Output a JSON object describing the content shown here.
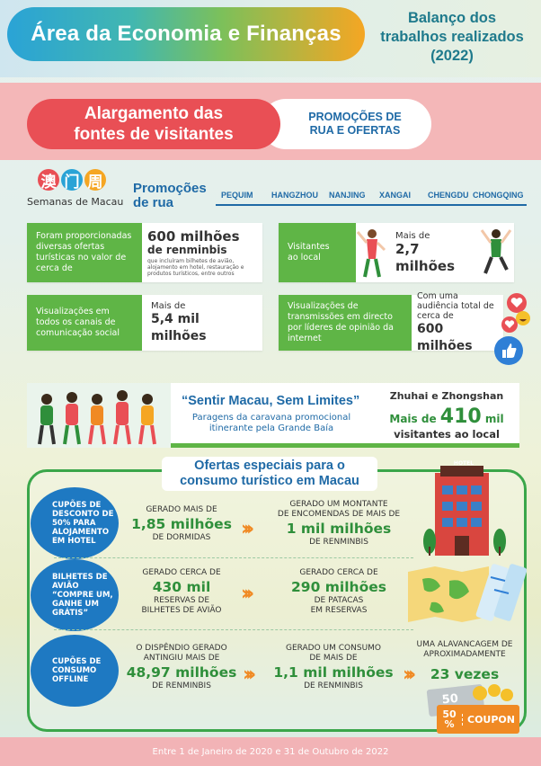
{
  "header": {
    "title": "Área da Economia e Finanças",
    "report_line1": "Balanço dos",
    "report_line2": "trabalhos realizados",
    "report_year": "(2022)"
  },
  "section": {
    "title_line1": "Alargamento das",
    "title_line2": "fontes de visitantes",
    "sub_line1": "PROMOÇÕES DE",
    "sub_line2": "RUA E OFERTAS"
  },
  "logo": {
    "chars": [
      "澳",
      "门",
      "周"
    ],
    "subtitle": "Semanas de Macau"
  },
  "promocoes": {
    "label_line1": "Promoções",
    "label_line2": "de rua",
    "cities": [
      "PEQUIM",
      "HANGZHOU",
      "NANJING",
      "XANGAI",
      "CHENGDU",
      "CHONGQING"
    ]
  },
  "stats": {
    "ofertas": {
      "label": "Foram proporcionadas diversas ofertas turísticas no valor de cerca de",
      "value_line1": "600 milhões",
      "value_line2": "de renminbis",
      "note": "que incluíram bilhetes de avião, alojamento em hotel, restauração e produtos turísticos, entre outros"
    },
    "visitantes": {
      "label_line1": "Visitantes",
      "label_line2": "ao local",
      "prefix": "Mais de",
      "value": "2,7 milhões"
    },
    "visualizacoes": {
      "label": "Visualizações em todos os canais de comunicação social",
      "prefix": "Mais de",
      "value": "5,4 mil milhões"
    },
    "transmissoes": {
      "label": "Visualizações de transmissões em directo por líderes de opinião da internet",
      "prefix": "Com uma audiência total de cerca de",
      "value": "600 milhões"
    }
  },
  "caravana": {
    "title": "“Sentir Macau, Sem Limites”",
    "sub_line1": "Paragens da caravana promocional",
    "sub_line2": "itinerante pela Grande Baía",
    "cities": "Zhuhai e Zhongshan",
    "stat_prefix": "Mais de",
    "stat_value": "410",
    "stat_unit": "mil",
    "stat_suffix": "visitantes ao local"
  },
  "ofertas_especiais": {
    "title_line1": "Ofertas especiais para o",
    "title_line2": "consumo turístico em Macau",
    "hotel_sign": "HOTEL",
    "rows": [
      {
        "bubble": "Cupões de desconto de 50% para alojamento em hotel",
        "c1_top": "GERADO MAIS DE",
        "c1_value": "1,85 milhões",
        "c1_bottom": "DE DORMIDAS",
        "c2_top_line1": "GERADO UM MONTANTE",
        "c2_top_line2": "DE ENCOMENDAS DE MAIS DE",
        "c2_value": "1 mil milhões",
        "c2_bottom": "DE RENMINBIS"
      },
      {
        "bubble": "Bilhetes de avião “Compre um, ganhe um grátis”",
        "c1_top": "GERADO CERCA DE",
        "c1_value": "430 mil",
        "c1_bottom_line1": "RESERVAS DE",
        "c1_bottom_line2": "BILHETES DE AVIÃO",
        "c2_top": "GERADO CERCA DE",
        "c2_value": "290 milhões",
        "c2_bottom_line1": "DE PATACAS",
        "c2_bottom_line2": "EM RESERVAS"
      },
      {
        "bubble": "Cupões de consumo offline",
        "c1_top_line1": "O DISPÊNDIO GERADO",
        "c1_top_line2": "ANTINGIU MAIS DE",
        "c1_value": "48,97 milhões",
        "c1_bottom": "DE RENMINBIS",
        "c2_top_line1": "GERADO UM CONSUMO",
        "c2_top_line2": "DE MAIS DE",
        "c2_value": "1,1 mil milhões",
        "c2_bottom": "DE RENMINBIS",
        "c3_top_line1": "UMA ALAVANCAGEM DE",
        "c3_top_line2": "APROXIMADAMENTE",
        "c3_value": "23 vezes"
      }
    ],
    "coupon_pct": "50",
    "coupon_pct_big": "50",
    "coupon_pct_sign": "%",
    "coupon_label": "COUPON"
  },
  "footer": {
    "text": "Entre 1 de Janeiro de 2020 e 31 de Outubro de 2022"
  },
  "colors": {
    "green": "#5fb546",
    "blue": "#1f6aa6",
    "red": "#e94f55",
    "orange": "#f08a24",
    "bubble_blue": "#1e79c2"
  }
}
